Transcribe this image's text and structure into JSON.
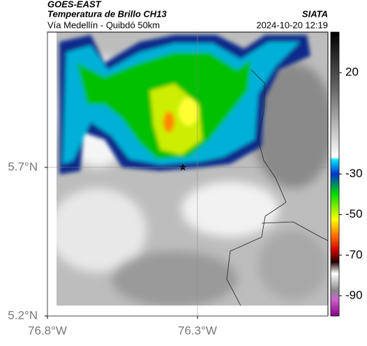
{
  "header": {
    "title": "GOES-EAST",
    "subtitle": "Temperatura de Brillo CH13",
    "route": "Vía Medellín - Quibdó 50km",
    "source": "SIATA",
    "datetime": "2024-10-20 12:19"
  },
  "map": {
    "xlim": [
      -76.8,
      -75.865
    ],
    "ylim": [
      5.2,
      6.155
    ],
    "xticks": [
      {
        "value": -76.8,
        "label": "76.8°W"
      },
      {
        "value": -76.3,
        "label": "76.3°W"
      }
    ],
    "yticks": [
      {
        "value": 5.2,
        "label": "5.2°N"
      },
      {
        "value": 5.7,
        "label": "5.7°N"
      }
    ],
    "colorbar": {
      "lim": [
        40,
        -100
      ],
      "ticks": [
        20,
        -30,
        -50,
        -70,
        -90
      ]
    }
  }
}
